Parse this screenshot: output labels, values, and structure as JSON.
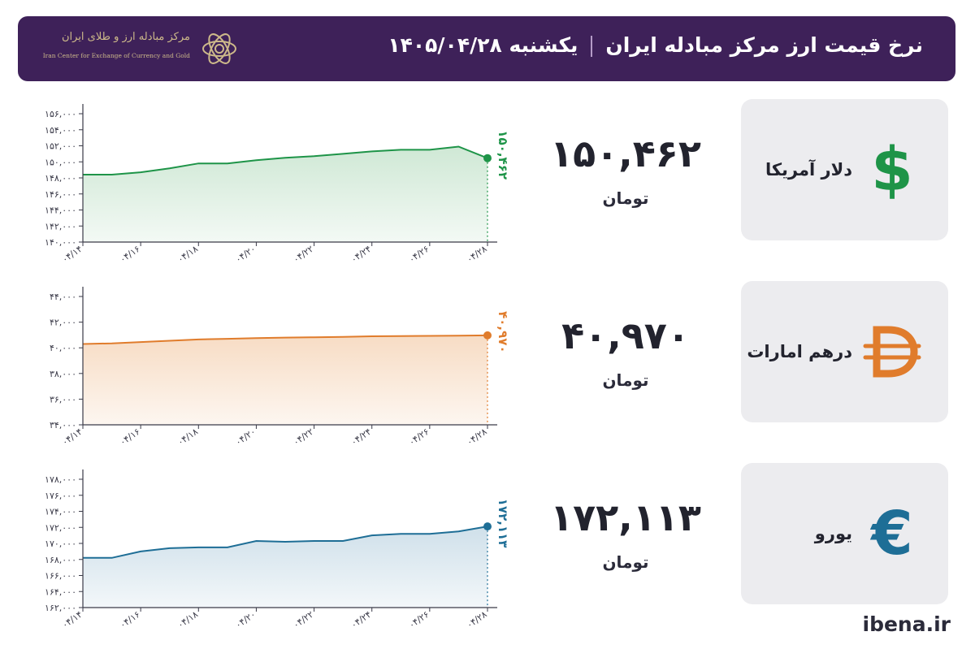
{
  "header": {
    "title": "نرخ قیمت ارز مرکز مبادله ایران",
    "date": "یکشنبه  ۱۴۰۵/۰۴/۲۸",
    "logo_fa": "مرکز مبادله ارز و طلای ایران",
    "logo_en": "Iran Center for Exchange of Currency and Gold",
    "bg_color": "#3e2159"
  },
  "brand": "ibena.ir",
  "currencies": [
    {
      "name": "دلار آمریکا",
      "value": "۱۵۰,۴۶۲",
      "unit": "تومان",
      "icon": "dollar-icon",
      "icon_glyph": "$",
      "color": "#1e9448",
      "fill": "#cfe8d5",
      "end_label": "۱۵۰,۴۶۲"
    },
    {
      "name": "درهم امارات",
      "value": "۴۰,۹۷۰",
      "unit": "تومان",
      "icon": "dirham-icon",
      "icon_glyph": "D",
      "color": "#e07c2c",
      "fill": "#f7dcc4",
      "end_label": "۴۰,۹۷۰"
    },
    {
      "name": "یورو",
      "value": "۱۷۲,۱۱۳",
      "unit": "تومان",
      "icon": "euro-icon",
      "icon_glyph": "€",
      "color": "#1e6e96",
      "fill": "#cfe0ea",
      "end_label": "۱۷۲,۱۱۳"
    }
  ],
  "chart_data": [
    {
      "type": "area",
      "title": "",
      "xlabel": "",
      "ylabel": "",
      "x": [
        "04/14",
        "04/15",
        "04/16",
        "04/17",
        "04/18",
        "04/19",
        "04/20",
        "04/21",
        "04/22",
        "04/23",
        "04/24",
        "04/25",
        "04/26",
        "04/27",
        "04/28"
      ],
      "x_tick_labels": [
        "۰۴/۱۴",
        "۰۴/۱۶",
        "۰۴/۱۸",
        "۰۴/۲۰",
        "۰۴/۲۲",
        "۰۴/۲۴",
        "۰۴/۲۶",
        "۰۴/۲۸"
      ],
      "series": [
        {
          "values": [
            148400,
            148400,
            148700,
            149200,
            149800,
            149800,
            150200,
            150500,
            150700,
            151000,
            151300,
            151500,
            151500,
            151900,
            150462
          ]
        }
      ],
      "ylim": [
        140000,
        156000
      ],
      "y_ticks": [
        140000,
        142000,
        144000,
        146000,
        148000,
        150000,
        152000,
        154000,
        156000
      ],
      "y_tick_labels": [
        "۱۴۰,۰۰۰",
        "۱۴۲,۰۰۰",
        "۱۴۴,۰۰۰",
        "۱۴۶,۰۰۰",
        "۱۴۸,۰۰۰",
        "۱۵۰,۰۰۰",
        "۱۵۲,۰۰۰",
        "۱۵۴,۰۰۰",
        "۱۵۶,۰۰۰"
      ],
      "grid": false
    },
    {
      "type": "area",
      "title": "",
      "xlabel": "",
      "ylabel": "",
      "x": [
        "04/14",
        "04/15",
        "04/16",
        "04/17",
        "04/18",
        "04/19",
        "04/20",
        "04/21",
        "04/22",
        "04/23",
        "04/24",
        "04/25",
        "04/26",
        "04/27",
        "04/28"
      ],
      "x_tick_labels": [
        "۰۴/۱۴",
        "۰۴/۱۶",
        "۰۴/۱۸",
        "۰۴/۲۰",
        "۰۴/۲۲",
        "۰۴/۲۴",
        "۰۴/۲۶",
        "۰۴/۲۸"
      ],
      "series": [
        {
          "values": [
            40300,
            40350,
            40450,
            40550,
            40650,
            40700,
            40750,
            40800,
            40820,
            40850,
            40900,
            40920,
            40930,
            40950,
            40970
          ]
        }
      ],
      "ylim": [
        34000,
        44000
      ],
      "y_ticks": [
        34000,
        36000,
        38000,
        40000,
        42000,
        44000
      ],
      "y_tick_labels": [
        "۳۴,۰۰۰",
        "۳۶,۰۰۰",
        "۳۸,۰۰۰",
        "۴۰,۰۰۰",
        "۴۲,۰۰۰",
        "۴۴,۰۰۰"
      ],
      "grid": false
    },
    {
      "type": "area",
      "title": "",
      "xlabel": "",
      "ylabel": "",
      "x": [
        "04/14",
        "04/15",
        "04/16",
        "04/17",
        "04/18",
        "04/19",
        "04/20",
        "04/21",
        "04/22",
        "04/23",
        "04/24",
        "04/25",
        "04/26",
        "04/27",
        "04/28"
      ],
      "x_tick_labels": [
        "۰۴/۱۴",
        "۰۴/۱۶",
        "۰۴/۱۸",
        "۰۴/۲۰",
        "۰۴/۲۲",
        "۰۴/۲۴",
        "۰۴/۲۶",
        "۰۴/۲۸"
      ],
      "series": [
        {
          "values": [
            168200,
            168200,
            169000,
            169400,
            169500,
            169500,
            170300,
            170200,
            170300,
            170300,
            171000,
            171200,
            171200,
            171500,
            172113
          ]
        }
      ],
      "ylim": [
        162000,
        178000
      ],
      "y_ticks": [
        162000,
        164000,
        166000,
        168000,
        170000,
        172000,
        174000,
        176000,
        178000
      ],
      "y_tick_labels": [
        "۱۶۲,۰۰۰",
        "۱۶۴,۰۰۰",
        "۱۶۶,۰۰۰",
        "۱۶۸,۰۰۰",
        "۱۷۰,۰۰۰",
        "۱۷۲,۰۰۰",
        "۱۷۴,۰۰۰",
        "۱۷۶,۰۰۰",
        "۱۷۸,۰۰۰"
      ],
      "grid": false
    }
  ]
}
